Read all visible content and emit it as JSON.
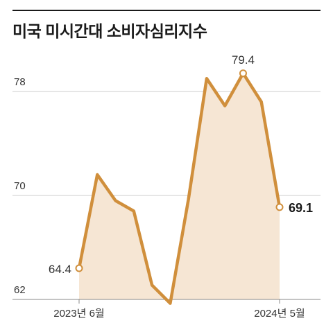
{
  "title": "미국 미시간대 소비자심리지수",
  "colors": {
    "line": "#d08f3c",
    "area": "#f6e6d4",
    "grid": "#cccccc",
    "axis": "#888888",
    "text": "#333333"
  },
  "chart_data": {
    "type": "area",
    "title": "미국 미시간대 소비자심리지수",
    "xlabel": "",
    "ylabel": "",
    "x_tick_labels": [
      "2023년 6월",
      "2024년 5월"
    ],
    "y_ticks": [
      62,
      70,
      78
    ],
    "ylim": [
      62,
      80.5
    ],
    "grid": "horizontal",
    "series": [
      {
        "values": [
          64.4,
          71.6,
          69.6,
          68.8,
          63.1,
          61.7,
          69.7,
          79.0,
          76.9,
          79.4,
          77.2,
          69.1
        ]
      }
    ],
    "annotations": [
      {
        "index": 0,
        "text": "64.4"
      },
      {
        "index": 9,
        "text": "79.4"
      },
      {
        "index": 11,
        "text": "69.1"
      }
    ]
  }
}
